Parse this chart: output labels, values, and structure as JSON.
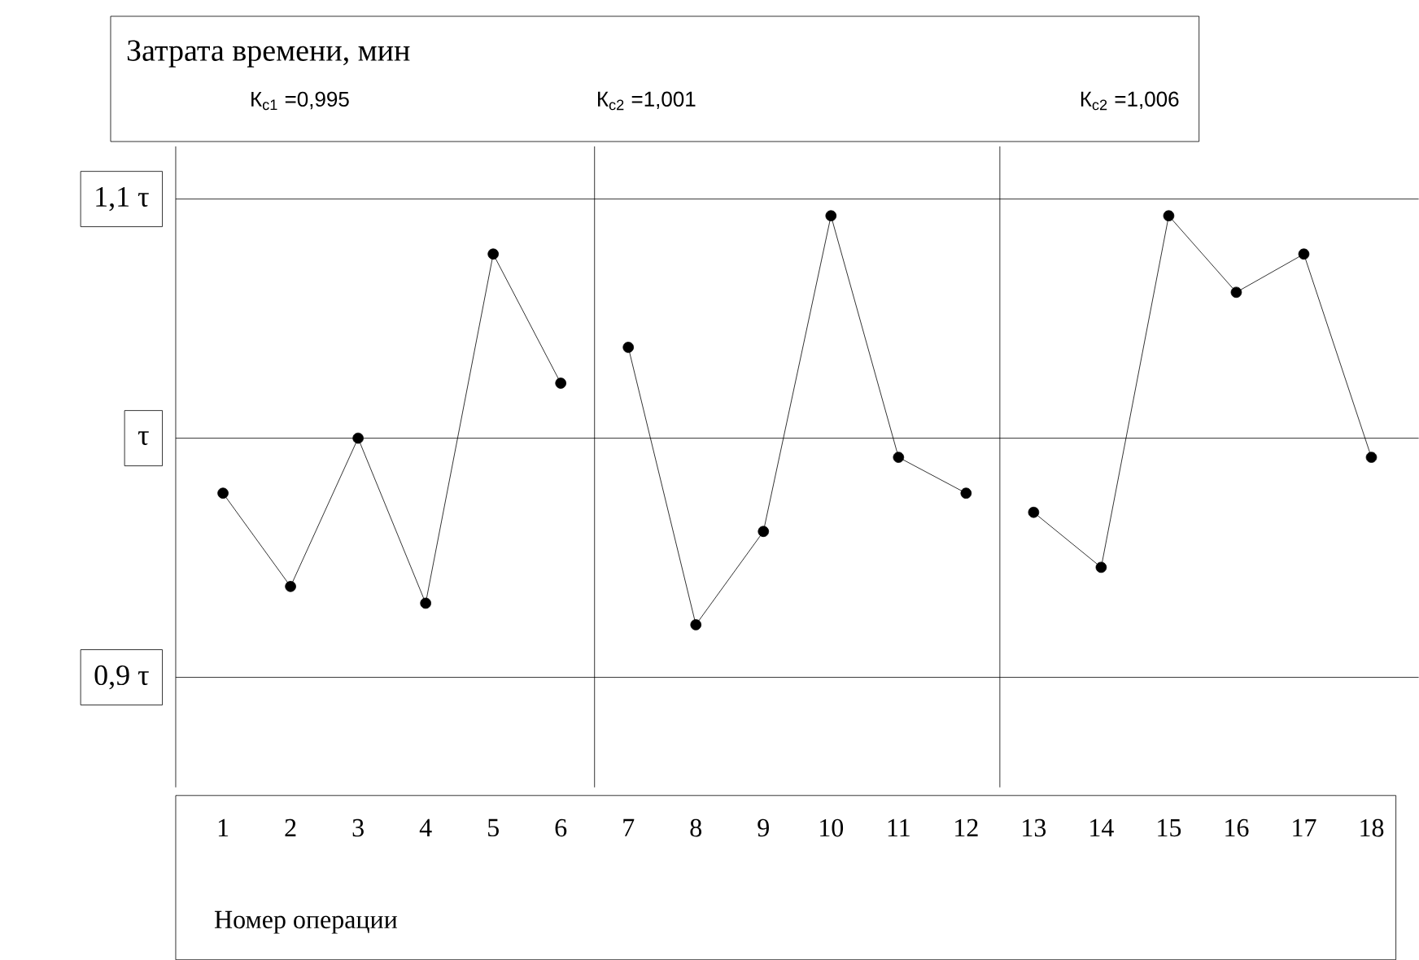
{
  "chart_data": {
    "type": "line",
    "title": "Затрата времени, мин",
    "xlabel": "Номер операции",
    "annotations": [
      "К$_{c1}$ =0,995",
      "К$_{c2}$ =1,001",
      "К$_{c2}$ =1,006"
    ],
    "series": [
      {
        "color": "#000000",
        "x": [
          1,
          2,
          3,
          4,
          5,
          6
        ],
        "values": [
          0.977,
          0.938,
          1.0,
          0.931,
          1.077,
          1.023
        ]
      },
      {
        "color": "#000000",
        "x": [
          7,
          8,
          9,
          10,
          11,
          12
        ],
        "values": [
          1.038,
          0.922,
          0.961,
          1.093,
          0.992,
          0.977
        ]
      },
      {
        "color": "#000000",
        "x": [
          13,
          14,
          15,
          16,
          17,
          18
        ],
        "values": [
          0.969,
          0.946,
          1.093,
          1.061,
          1.077,
          0.992
        ]
      }
    ],
    "xlim": [
      0.3,
      18.7
    ],
    "xticks": [
      1,
      2,
      3,
      4,
      5,
      6,
      7,
      8,
      9,
      10,
      11,
      12,
      13,
      14,
      15,
      16,
      17,
      18
    ],
    "ylim": [
      0.854,
      1.122
    ],
    "yticks": [
      {
        "value": 0.9,
        "label": "0,9 τ"
      },
      {
        "value": 1,
        "label": "τ"
      },
      {
        "value": 1.1,
        "label": "1,1 τ"
      }
    ],
    "ref_lines": [
      {
        "axis": "x",
        "value": 6.5,
        "color": "#000000"
      },
      {
        "axis": "x",
        "value": 12.5,
        "color": "#000000"
      }
    ],
    "grid": "y",
    "marker": "circle",
    "line_style": "solid"
  }
}
